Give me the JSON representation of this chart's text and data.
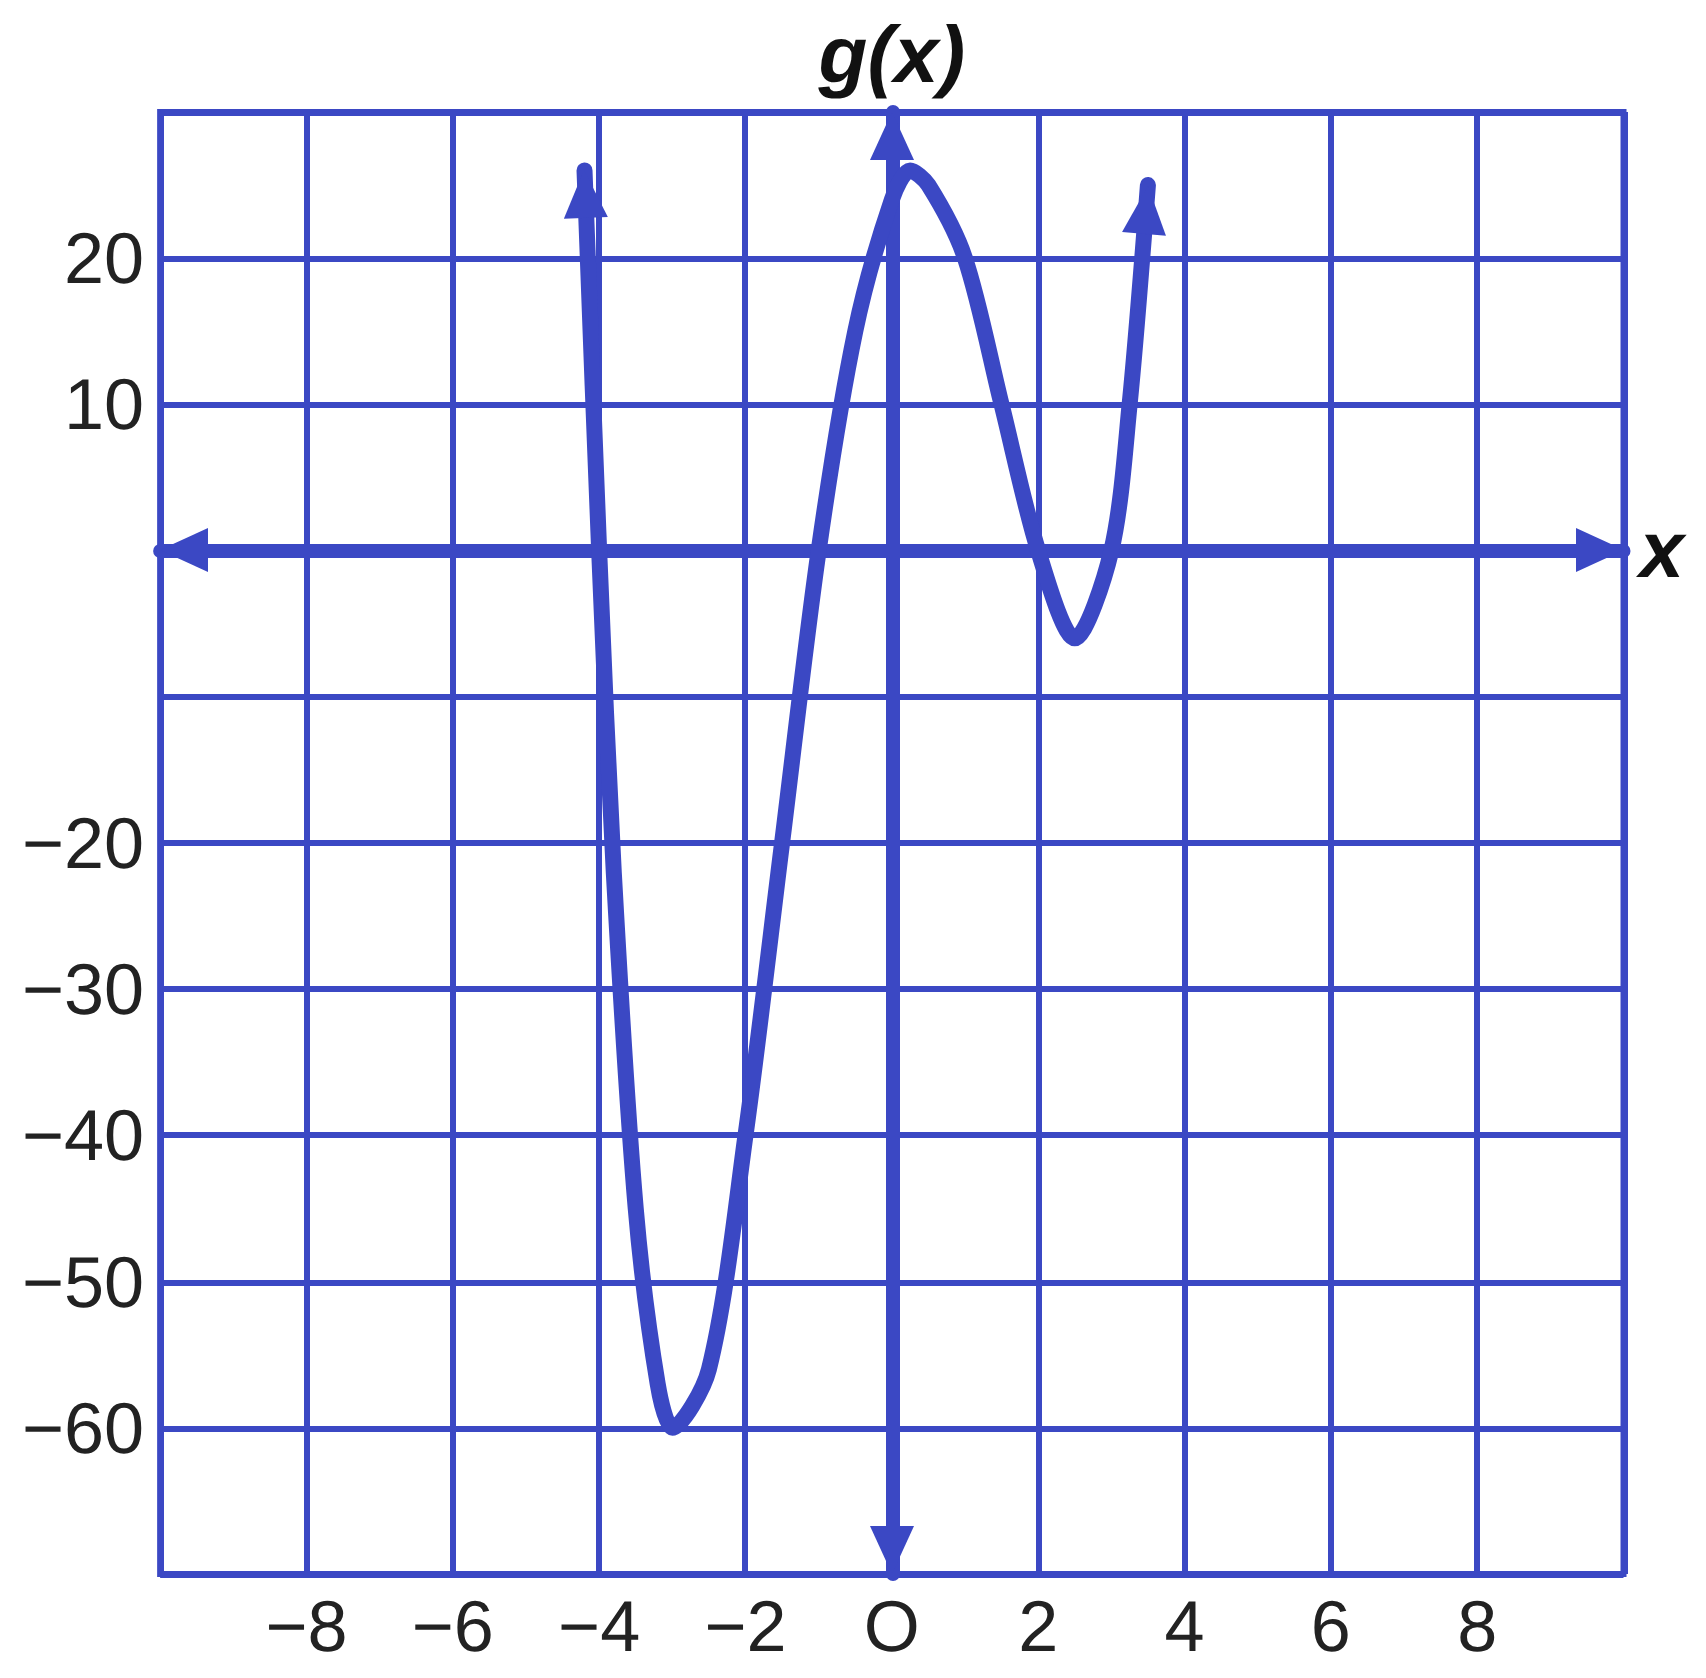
{
  "chart_data": {
    "type": "line",
    "xlabel": "x",
    "ylabel": "g(x)",
    "xlim": [
      -10,
      10
    ],
    "ylim": [
      -70,
      30
    ],
    "xticks": [
      {
        "value": -10,
        "label": null
      },
      -8,
      -6,
      -4,
      -2,
      {
        "value": 0,
        "label": "O"
      },
      2,
      4,
      6,
      8,
      {
        "value": 10,
        "label": null
      }
    ],
    "yticks": [
      {
        "value": -70,
        "label": null
      },
      -60,
      -50,
      -40,
      -30,
      -20,
      {
        "value": -10,
        "label": null
      },
      {
        "value": 0,
        "label": null
      },
      10,
      20,
      {
        "value": 30,
        "label": null
      }
    ],
    "grid": true,
    "line_style": "solid",
    "series": [
      {
        "color": "#3b48c4",
        "x": [
          -4.2,
          -4,
          -3.8,
          -3.5,
          -3.2,
          -3,
          -2.5,
          -2,
          -1.5,
          -1,
          -0.5,
          0,
          0.25,
          0.5,
          1,
          1.5,
          2,
          2.5,
          3,
          3.25,
          3.5
        ],
        "values": [
          26,
          0,
          -22,
          -45,
          -57,
          -60,
          -56,
          -40,
          -20,
          0,
          15,
          24,
          26,
          25,
          20,
          10,
          0,
          -6,
          0,
          10,
          25
        ]
      }
    ]
  }
}
